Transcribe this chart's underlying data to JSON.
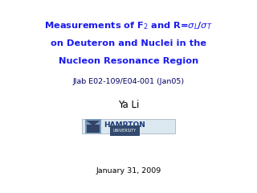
{
  "bg_color": "#ffffff",
  "title_line1": "Measurements of F$_2$ and R=$\\sigma_L$/$\\sigma_T$",
  "title_line2": "on Deuteron and Nuclei in the",
  "title_line3": "Nucleon Resonance Region",
  "title_color": "#1a1aee",
  "subtitle": "Jlab E02-109/E04-001 (Jan05)",
  "subtitle_color": "#000066",
  "author": "Ya Li",
  "author_color": "#000000",
  "date": "January 31, 2009",
  "date_color": "#000000",
  "hampton_text": "HAMPTON",
  "hampton_univ": "UNIVERSITY",
  "hampton_color": "#1a3a7a",
  "hampton_bg": "#c8d8e8",
  "fig_width": 3.2,
  "fig_height": 2.4,
  "dpi": 100
}
